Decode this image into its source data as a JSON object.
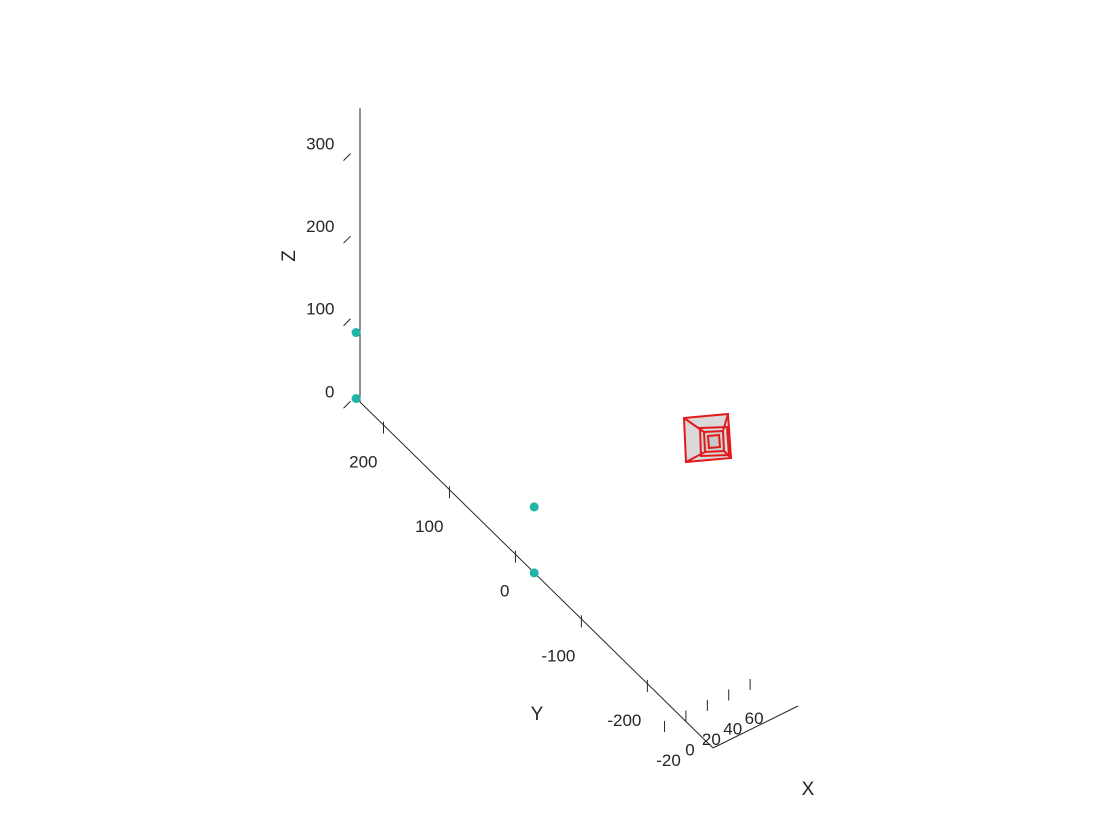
{
  "chart_data": {
    "type": "scatter",
    "title": "",
    "xlabel": "X",
    "ylabel": "Y",
    "zlabel": "Z",
    "xlim": [
      -20,
      60
    ],
    "ylim": [
      -250,
      250
    ],
    "zlim": [
      0,
      350
    ],
    "xticks": [
      "-20",
      "0",
      "20",
      "40",
      "60"
    ],
    "yticks": [
      "200",
      "100",
      "0",
      "-100",
      "-200"
    ],
    "zticks": [
      "0",
      "100",
      "200",
      "300"
    ],
    "grid": false,
    "series": [
      {
        "marker": "filled-circle",
        "color": "#1fb6a8",
        "points": [
          {
            "x": 0,
            "y": 250,
            "z": 0
          },
          {
            "x": 0,
            "y": 250,
            "z": 80
          },
          {
            "x": 0,
            "y": -20,
            "z": 0
          },
          {
            "x": 0,
            "y": -20,
            "z": 80
          }
        ]
      }
    ],
    "object": {
      "kind": "camera-frustum",
      "edge_color": "#e31a1c",
      "face_color": "#d9d9d9"
    }
  }
}
